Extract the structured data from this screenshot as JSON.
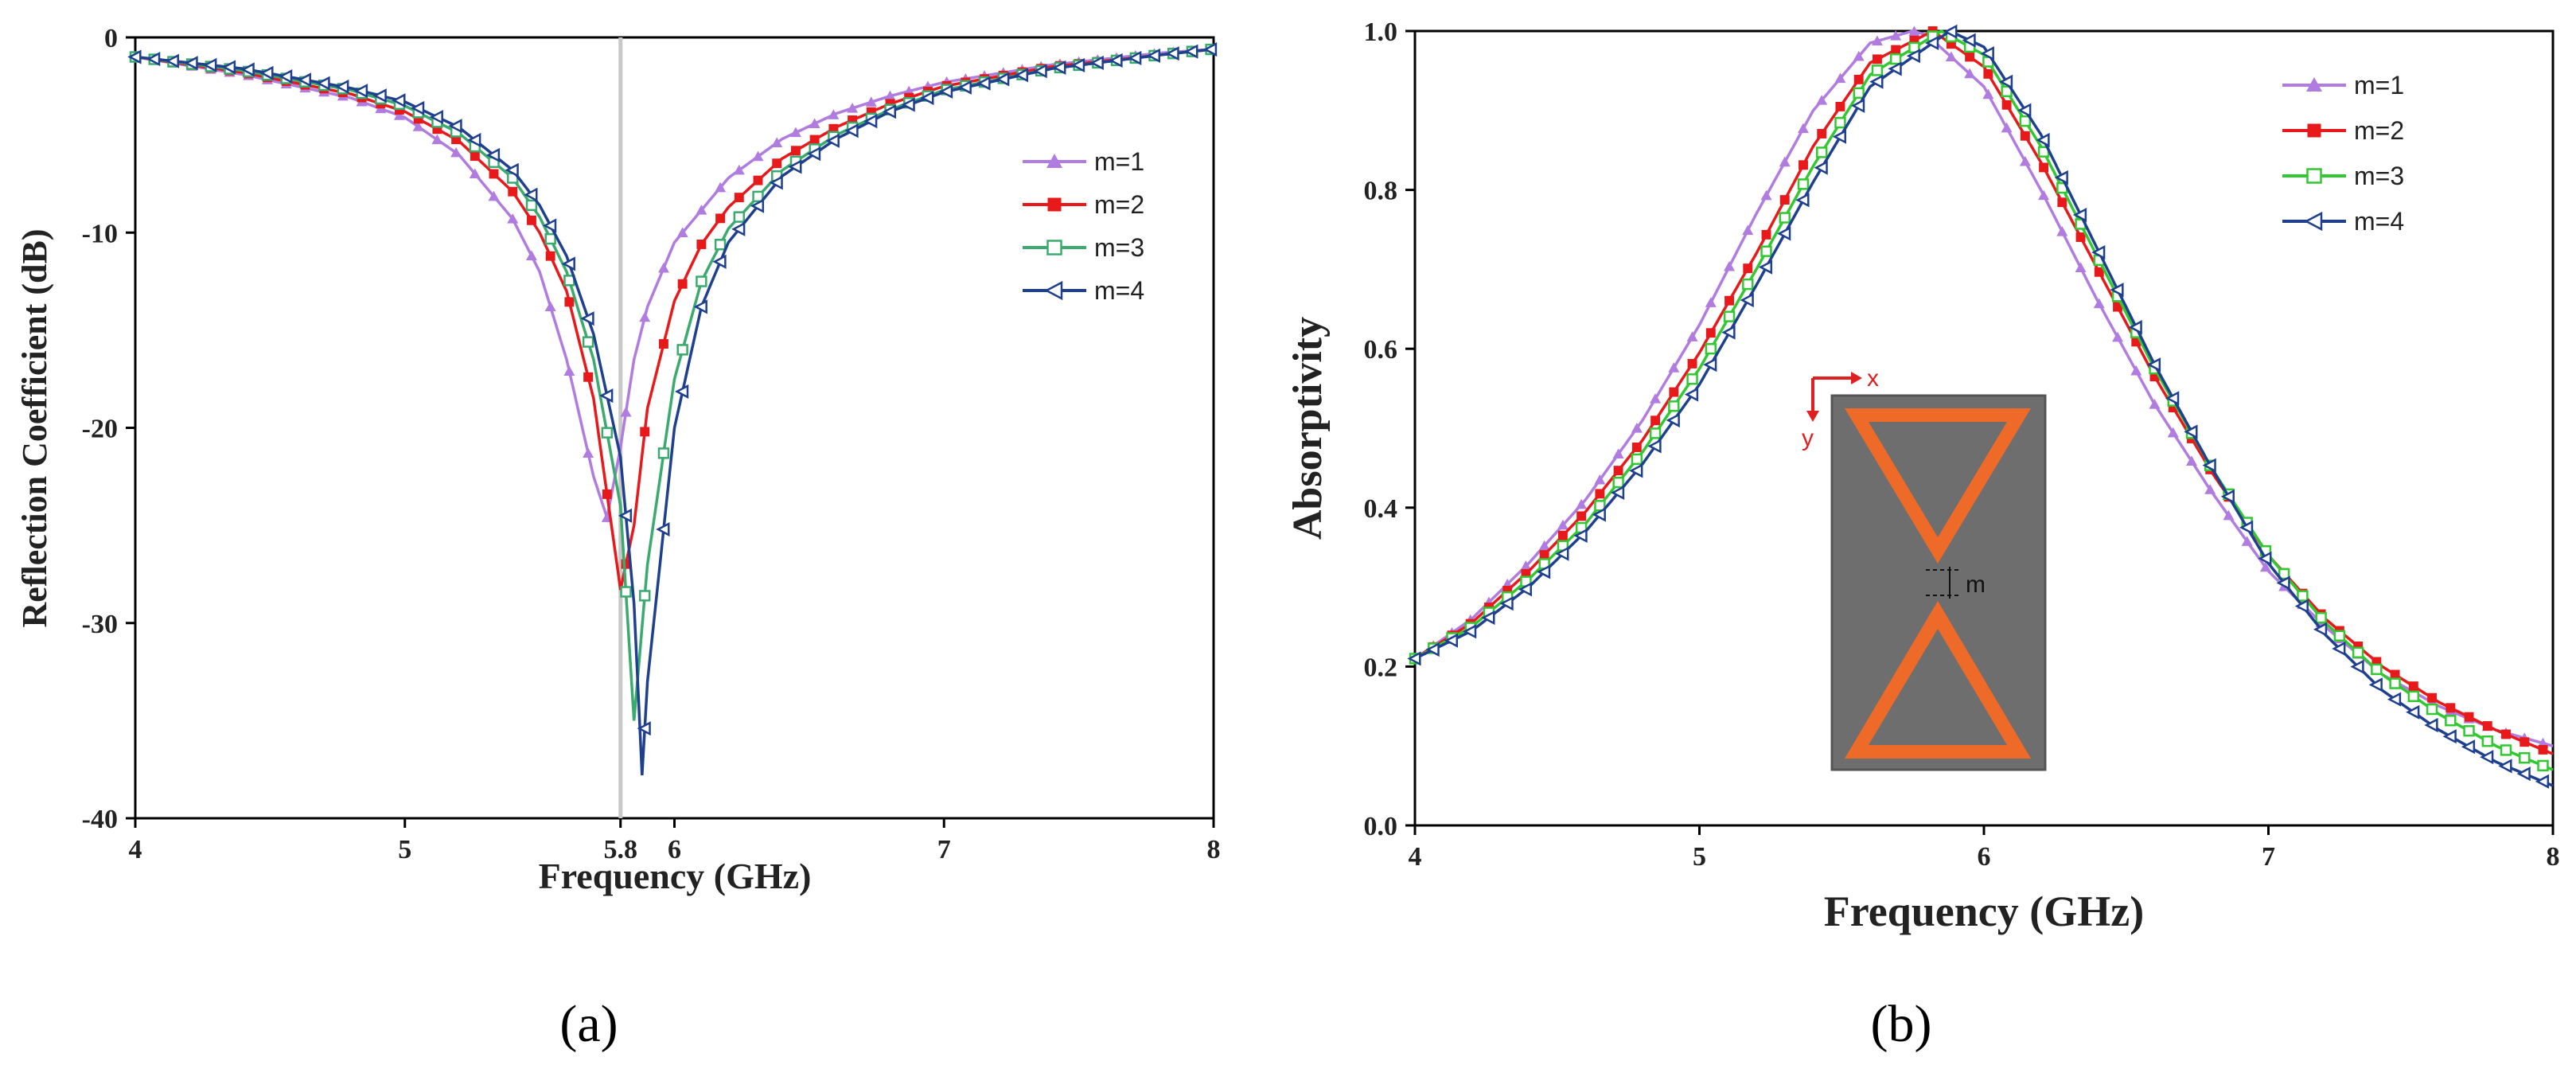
{
  "chart_data": [
    {
      "type": "line",
      "panel_label": "(a)",
      "title": "",
      "xlabel": "Frequency (GHz)",
      "ylabel": "Reflection Coefficient (dB)",
      "xlim": [
        4,
        8
      ],
      "ylim": [
        -40,
        0
      ],
      "xticks": [
        "4",
        "5",
        "5.8",
        "6",
        "7",
        "8"
      ],
      "xtick_values": [
        4,
        5,
        5.8,
        6,
        7,
        8
      ],
      "yticks": [
        "0",
        "-10",
        "-20",
        "-30",
        "-40"
      ],
      "ytick_values": [
        0,
        -10,
        -20,
        -30,
        -40
      ],
      "reference_line_x": 5.8,
      "legend_position": "right-middle",
      "grid": false,
      "series": [
        {
          "name": "m=1",
          "color": "#b07ce0",
          "marker": "filled-triangle",
          "x": [
            4.0,
            4.4,
            4.8,
            5.0,
            5.2,
            5.4,
            5.5,
            5.6,
            5.7,
            5.75,
            5.8,
            5.85,
            5.9,
            6.0,
            6.2,
            6.4,
            6.6,
            6.8,
            7.0,
            7.4,
            7.8,
            8.0
          ],
          "values": [
            -1.0,
            -1.9,
            -3.1,
            -4.1,
            -6.0,
            -9.3,
            -12.0,
            -16.5,
            -22.5,
            -24.6,
            -21.0,
            -16.5,
            -13.8,
            -10.5,
            -7.2,
            -5.2,
            -3.9,
            -3.0,
            -2.3,
            -1.4,
            -0.8,
            -0.6
          ]
        },
        {
          "name": "m=2",
          "color": "#e8191b",
          "marker": "filled-square",
          "x": [
            4.0,
            4.4,
            4.8,
            5.0,
            5.2,
            5.4,
            5.5,
            5.6,
            5.7,
            5.8,
            5.85,
            5.9,
            6.0,
            6.1,
            6.2,
            6.4,
            6.6,
            6.8,
            7.0,
            7.4,
            7.8,
            8.0
          ],
          "values": [
            -1.0,
            -1.8,
            -2.9,
            -3.8,
            -5.3,
            -7.9,
            -10.0,
            -13.0,
            -18.5,
            -28.3,
            -25.0,
            -19.0,
            -13.5,
            -10.6,
            -8.7,
            -6.2,
            -4.6,
            -3.4,
            -2.5,
            -1.5,
            -0.9,
            -0.6
          ]
        },
        {
          "name": "m=3",
          "color": "#3aaa6e",
          "marker": "open-square",
          "x": [
            4.0,
            4.4,
            4.8,
            5.0,
            5.2,
            5.4,
            5.5,
            5.6,
            5.7,
            5.8,
            5.85,
            5.9,
            6.0,
            6.1,
            6.2,
            6.4,
            6.6,
            6.8,
            7.0,
            7.4,
            7.8,
            8.0
          ],
          "values": [
            -1.0,
            -1.7,
            -2.7,
            -3.5,
            -4.9,
            -7.2,
            -9.2,
            -12.0,
            -16.5,
            -24.0,
            -35.0,
            -27.0,
            -17.5,
            -12.5,
            -9.8,
            -6.8,
            -5.0,
            -3.7,
            -2.7,
            -1.6,
            -0.9,
            -0.6
          ]
        },
        {
          "name": "m=4",
          "color": "#1f3f8f",
          "marker": "open-triangle-left",
          "x": [
            4.0,
            4.4,
            4.8,
            5.0,
            5.2,
            5.4,
            5.5,
            5.6,
            5.7,
            5.8,
            5.85,
            5.88,
            5.9,
            6.0,
            6.1,
            6.2,
            6.4,
            6.6,
            6.8,
            7.0,
            7.4,
            7.8,
            8.0
          ],
          "values": [
            -1.0,
            -1.6,
            -2.6,
            -3.3,
            -4.6,
            -6.8,
            -8.6,
            -11.2,
            -15.2,
            -21.5,
            -29.0,
            -37.8,
            -33.0,
            -20.0,
            -13.8,
            -10.5,
            -7.1,
            -5.2,
            -3.8,
            -2.8,
            -1.6,
            -0.9,
            -0.6
          ]
        }
      ]
    },
    {
      "type": "line",
      "panel_label": "(b)",
      "title": "",
      "xlabel": "Frequency (GHz)",
      "ylabel": "Absorptivity",
      "xlim": [
        4,
        8
      ],
      "ylim": [
        0.0,
        1.0
      ],
      "xticks": [
        "4",
        "5",
        "6",
        "7",
        "8"
      ],
      "xtick_values": [
        4,
        5,
        6,
        7,
        8
      ],
      "yticks": [
        "0.0",
        "0.2",
        "0.4",
        "0.6",
        "0.8",
        "1.0"
      ],
      "ytick_values": [
        0.0,
        0.2,
        0.4,
        0.6,
        0.8,
        1.0
      ],
      "legend_position": "top-right",
      "grid": false,
      "series": [
        {
          "name": "m=1",
          "color": "#b07ce0",
          "marker": "filled-triangle",
          "x": [
            4.0,
            4.2,
            4.4,
            4.6,
            4.8,
            5.0,
            5.2,
            5.4,
            5.6,
            5.75,
            5.8,
            6.0,
            6.2,
            6.4,
            6.6,
            6.8,
            7.0,
            7.2,
            7.4,
            7.6,
            7.8,
            8.0
          ],
          "values": [
            0.21,
            0.26,
            0.33,
            0.41,
            0.51,
            0.63,
            0.77,
            0.9,
            0.985,
            1.0,
            0.995,
            0.93,
            0.8,
            0.66,
            0.53,
            0.42,
            0.32,
            0.25,
            0.19,
            0.15,
            0.12,
            0.1
          ]
        },
        {
          "name": "m=2",
          "color": "#e8191b",
          "marker": "filled-square",
          "x": [
            4.0,
            4.2,
            4.4,
            4.6,
            4.8,
            5.0,
            5.2,
            5.4,
            5.6,
            5.82,
            6.0,
            6.2,
            6.4,
            6.6,
            6.8,
            7.0,
            7.2,
            7.4,
            7.6,
            7.8,
            8.0
          ],
          "values": [
            0.21,
            0.255,
            0.32,
            0.395,
            0.485,
            0.595,
            0.72,
            0.855,
            0.96,
            1.0,
            0.955,
            0.835,
            0.7,
            0.565,
            0.445,
            0.34,
            0.26,
            0.2,
            0.155,
            0.12,
            0.09
          ]
        },
        {
          "name": "m=3",
          "color": "#32c832",
          "marker": "open-square",
          "x": [
            4.0,
            4.2,
            4.4,
            4.6,
            4.8,
            5.0,
            5.2,
            5.4,
            5.6,
            5.85,
            6.0,
            6.2,
            6.4,
            6.6,
            6.8,
            7.0,
            7.2,
            7.4,
            7.6,
            7.8,
            8.0
          ],
          "values": [
            0.21,
            0.25,
            0.31,
            0.38,
            0.47,
            0.575,
            0.7,
            0.83,
            0.945,
            1.0,
            0.97,
            0.855,
            0.715,
            0.575,
            0.45,
            0.34,
            0.255,
            0.19,
            0.14,
            0.1,
            0.07
          ]
        },
        {
          "name": "m=4",
          "color": "#1f3f8f",
          "marker": "open-triangle-left",
          "x": [
            4.0,
            4.2,
            4.4,
            4.6,
            4.8,
            5.0,
            5.2,
            5.4,
            5.6,
            5.88,
            6.0,
            6.2,
            6.4,
            6.6,
            6.8,
            7.0,
            7.2,
            7.4,
            7.6,
            7.8,
            8.0
          ],
          "values": [
            0.21,
            0.245,
            0.3,
            0.37,
            0.455,
            0.555,
            0.68,
            0.81,
            0.93,
            1.0,
            0.98,
            0.87,
            0.725,
            0.58,
            0.45,
            0.33,
            0.24,
            0.17,
            0.12,
            0.08,
            0.05
          ]
        }
      ],
      "inset": {
        "description_labels": {
          "x_axis": "x",
          "y_axis": "y",
          "gap": "m"
        },
        "colors": {
          "background": "#6e6e6e",
          "triangle": "#ee6a28",
          "axis": "#e02020"
        }
      }
    }
  ]
}
